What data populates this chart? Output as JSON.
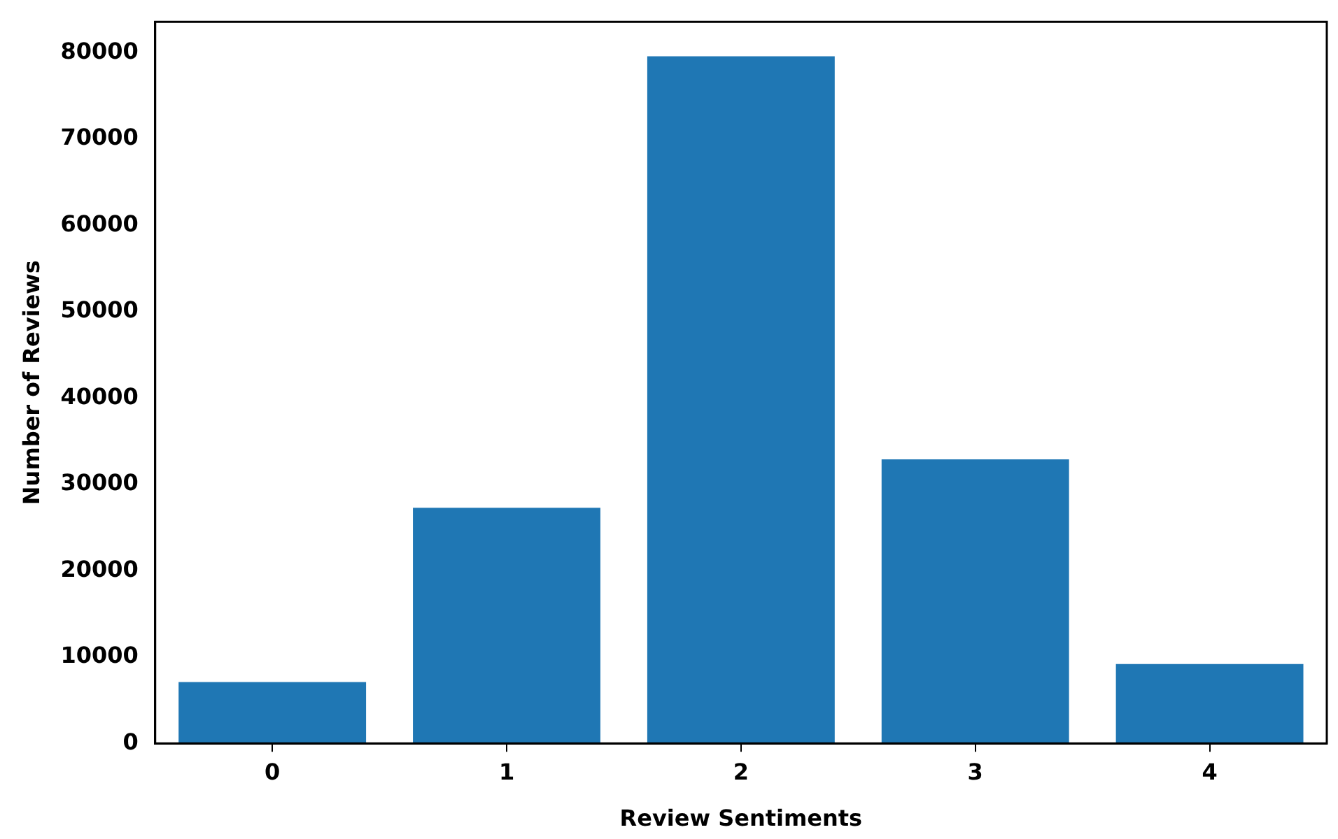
{
  "chart_data": {
    "type": "bar",
    "xlabel": "Review Sentiments",
    "ylabel": "Number of Reviews",
    "categories": [
      "0",
      "1",
      "2",
      "3",
      "4"
    ],
    "values": [
      7100,
      27300,
      79600,
      32900,
      9200
    ],
    "color": "#1f77b4",
    "ylim": [
      0,
      83600
    ],
    "yticks": [
      0,
      10000,
      20000,
      30000,
      40000,
      50000,
      60000,
      70000,
      80000
    ],
    "grid": false,
    "legend": false
  }
}
